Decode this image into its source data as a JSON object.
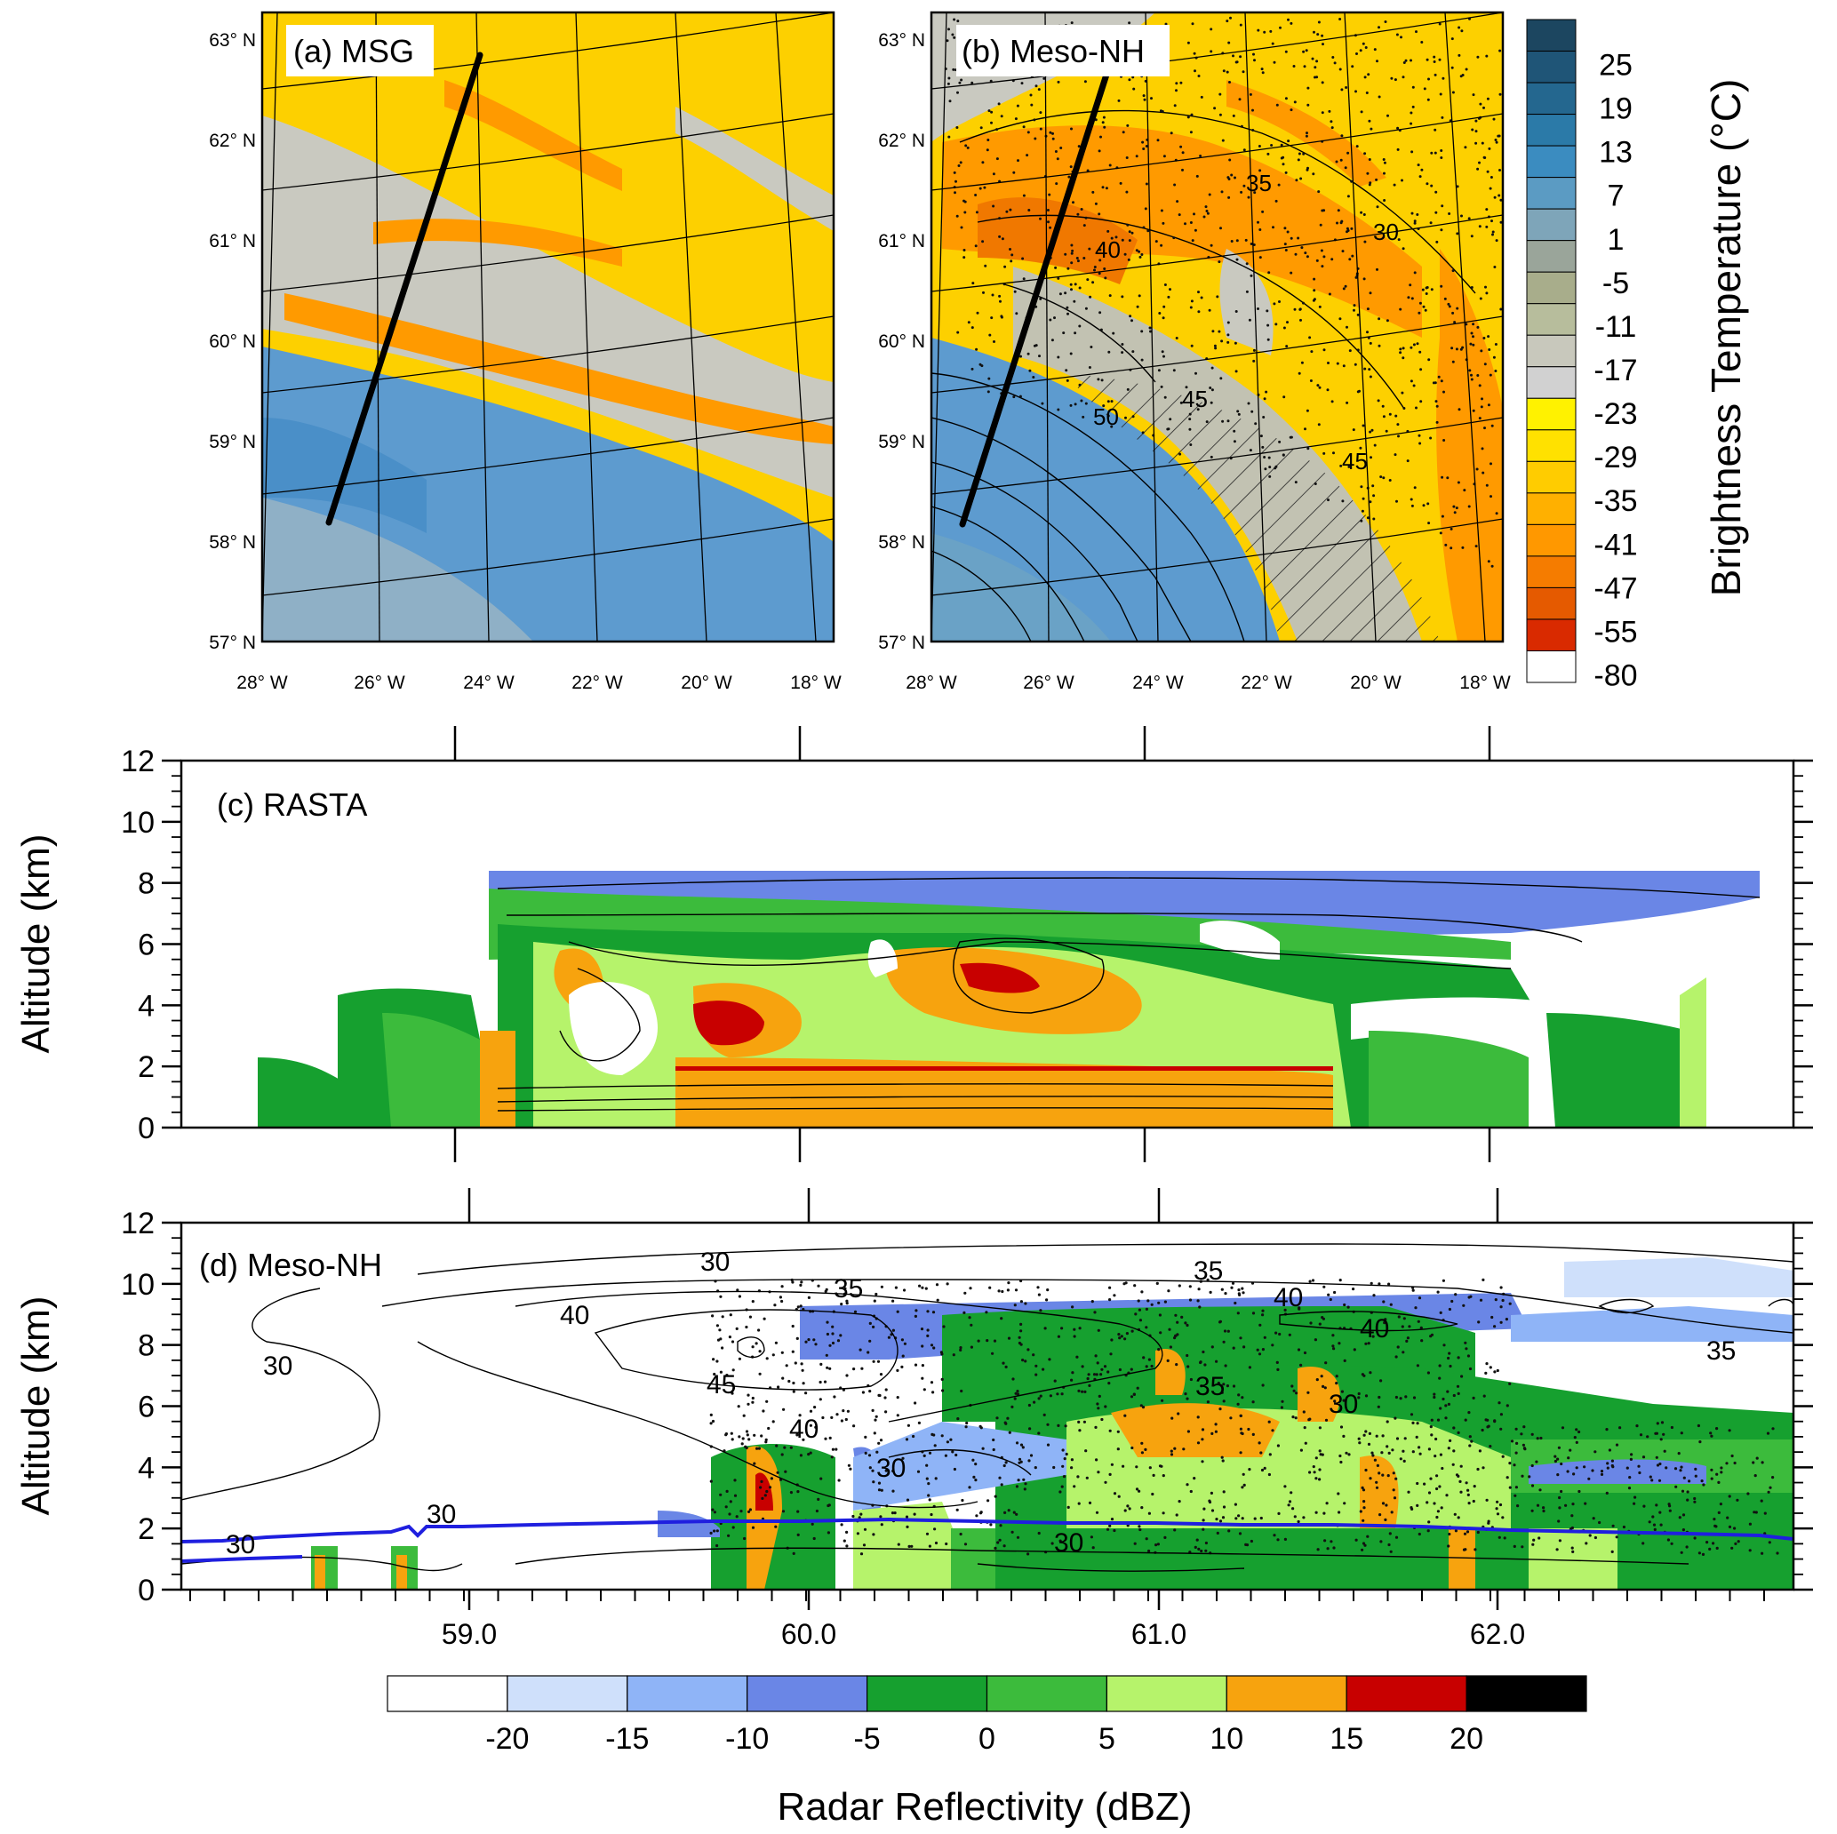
{
  "panels": {
    "a": {
      "label": "(a) MSG"
    },
    "b": {
      "label": "(b) Meso-NH"
    },
    "c": {
      "label": "(c) RASTA"
    },
    "d": {
      "label": "(d) Meso-NH"
    }
  },
  "map_axes": {
    "lat_labels": [
      "57° N",
      "58° N",
      "59° N",
      "60° N",
      "61° N",
      "62° N",
      "63° N"
    ],
    "lon_labels": [
      "28° W",
      "26° W",
      "24° W",
      "22° W",
      "20° W",
      "18° W"
    ]
  },
  "tb_colorbar": {
    "title": "Brightness Temperature (°C)",
    "labels": [
      "25",
      "19",
      "13",
      "7",
      "1",
      "-5",
      "-11",
      "-17",
      "-23",
      "-29",
      "-35",
      "-41",
      "-47",
      "-55",
      "-80"
    ],
    "colors": [
      "#1c4660",
      "#1f5577",
      "#24678f",
      "#2b7aa8",
      "#3b8cc0",
      "#5b9bc3",
      "#7ea5b9",
      "#9aa59a",
      "#a8ad8b",
      "#b7bd9c",
      "#c8c8bc",
      "#d1d1d1",
      "#fff200",
      "#ffe100",
      "#ffcc00",
      "#ffb000",
      "#ff9800",
      "#f57c00",
      "#e55a00",
      "#d92a00",
      "#ffffff"
    ]
  },
  "section_axes": {
    "ylabel": "Altitude (km)",
    "yticks": [
      "0",
      "2",
      "4",
      "6",
      "8",
      "10",
      "12"
    ],
    "xticks": [
      "59.0",
      "60.0",
      "61.0",
      "62.0"
    ]
  },
  "contour_labels_b": [
    "30",
    "35",
    "40",
    "45",
    "50",
    "45"
  ],
  "contour_labels_d": [
    "30",
    "35",
    "40",
    "45",
    "40",
    "30",
    "30",
    "30",
    "30",
    "35",
    "40",
    "40",
    "35",
    "30",
    "35",
    "30"
  ],
  "dbz_colorbar": {
    "title": "Radar Reflectivity (dBZ)",
    "labels": [
      "-20",
      "-15",
      "-10",
      "-5",
      "0",
      "5",
      "10",
      "15",
      "20"
    ],
    "colors": [
      "#ffffff",
      "#cfe0fb",
      "#8fb4f7",
      "#6a86e6",
      "#16a02f",
      "#3cbb3c",
      "#b6f36b",
      "#f7a30e",
      "#c80000",
      "#000000"
    ]
  },
  "chart_data": {
    "type": "heatmap",
    "description_values": {
      "altitude_range_km": [
        0,
        12
      ],
      "latitude_range": [
        58.6,
        62.9
      ],
      "map_lat_range": [
        57,
        63
      ],
      "map_lon_range": [
        -28,
        -18
      ],
      "flight_track": {
        "start": {
          "lat": 58.2,
          "lon": -26.8
        },
        "end": {
          "lat": 62.8,
          "lon": -24.1
        }
      },
      "freezing_level_km": 2.0
    }
  }
}
